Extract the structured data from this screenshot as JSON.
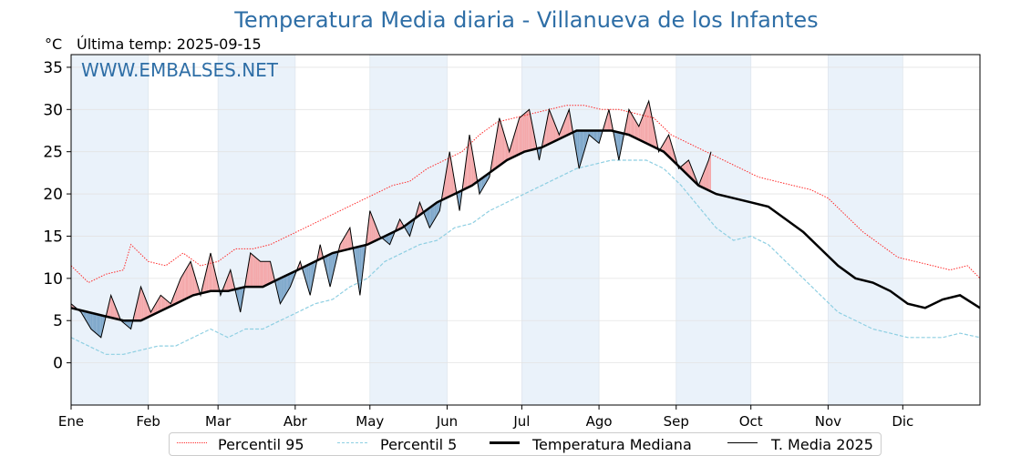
{
  "title": "Temperatura Media diaria - Villanueva de los Infantes",
  "unit": "°C",
  "last_temp_label": "Última temp: 2025-09-15",
  "watermark": "WWW.EMBALSES.NET",
  "colors": {
    "p95": "#ff2a2a",
    "p5": "#8ecfe2",
    "median": "#000000",
    "media2025": "#000000",
    "above_fill": "#f4a8aa",
    "below_fill": "#7fa8cb",
    "band": "#eaf2fa",
    "title": "#2e6ea6"
  },
  "legend": {
    "p95": "Percentil 95",
    "p5": "Percentil 5",
    "median": "Temperatura Mediana",
    "media2025": "T. Media 2025"
  },
  "chart_data": {
    "type": "line",
    "title": "Temperatura Media diaria - Villanueva de los Infantes",
    "ylabel": "°C",
    "ylim": [
      -5,
      36.5
    ],
    "yticks": [
      0,
      5,
      10,
      15,
      20,
      25,
      30,
      35
    ],
    "xlim": [
      1,
      366
    ],
    "month_labels": [
      "Ene",
      "Feb",
      "Mar",
      "Abr",
      "May",
      "Jun",
      "Jul",
      "Ago",
      "Sep",
      "Oct",
      "Nov",
      "Dic"
    ],
    "month_start_days": [
      1,
      32,
      60,
      91,
      121,
      152,
      182,
      213,
      244,
      274,
      305,
      335
    ],
    "grid": true,
    "legend_position": "bottom",
    "series": [
      {
        "name": "Percentil 95",
        "style": "dotted",
        "x": [
          1,
          8,
          15,
          22,
          25,
          32,
          39,
          46,
          53,
          60,
          67,
          74,
          81,
          88,
          95,
          102,
          109,
          116,
          123,
          130,
          137,
          144,
          151,
          158,
          165,
          172,
          179,
          186,
          193,
          200,
          207,
          214,
          221,
          228,
          235,
          242,
          249,
          256,
          263,
          270,
          277,
          284,
          291,
          298,
          305,
          312,
          319,
          326,
          333,
          340,
          347,
          354,
          361,
          366
        ],
        "values": [
          11.5,
          9.5,
          10.5,
          11,
          14,
          12,
          11.5,
          13,
          11.5,
          12,
          13.5,
          13.5,
          14,
          15,
          16,
          17,
          18,
          19,
          20,
          21,
          21.5,
          23,
          24,
          25,
          27,
          28.5,
          29,
          29.5,
          30,
          30.5,
          30.5,
          30,
          30,
          29.5,
          29,
          27,
          26,
          25,
          24,
          23,
          22,
          21.5,
          21,
          20.5,
          19.5,
          17.5,
          15.5,
          14,
          12.5,
          12,
          11.5,
          11,
          11.5,
          10
        ]
      },
      {
        "name": "Percentil 5",
        "style": "dashed",
        "x": [
          1,
          8,
          15,
          22,
          29,
          36,
          43,
          50,
          57,
          64,
          71,
          78,
          85,
          92,
          99,
          106,
          113,
          120,
          127,
          134,
          141,
          148,
          155,
          162,
          169,
          176,
          183,
          190,
          197,
          204,
          211,
          218,
          225,
          232,
          239,
          246,
          253,
          260,
          267,
          274,
          281,
          288,
          295,
          302,
          309,
          316,
          323,
          330,
          337,
          344,
          351,
          358,
          366
        ],
        "values": [
          3,
          2,
          1,
          1,
          1.5,
          2,
          2,
          3,
          4,
          3,
          4,
          4,
          5,
          6,
          7,
          7.5,
          9,
          10,
          12,
          13,
          14,
          14.5,
          16,
          16.5,
          18,
          19,
          20,
          21,
          22,
          23,
          23.5,
          24,
          24,
          24,
          23,
          21,
          18.5,
          16,
          14.5,
          15,
          14,
          12,
          10,
          8,
          6,
          5,
          4,
          3.5,
          3,
          3,
          3,
          3.5,
          3
        ]
      },
      {
        "name": "Temperatura Mediana",
        "style": "solid-bold",
        "x": [
          1,
          8,
          15,
          22,
          29,
          36,
          43,
          50,
          57,
          64,
          71,
          78,
          85,
          92,
          99,
          106,
          113,
          120,
          127,
          134,
          141,
          148,
          155,
          162,
          169,
          176,
          183,
          190,
          197,
          204,
          211,
          218,
          225,
          232,
          239,
          246,
          253,
          260,
          267,
          274,
          281,
          288,
          295,
          302,
          309,
          316,
          323,
          330,
          337,
          344,
          351,
          358,
          366
        ],
        "values": [
          6.5,
          6,
          5.5,
          5,
          5,
          6,
          7,
          8,
          8.5,
          8.5,
          9,
          9,
          10,
          11,
          12,
          13,
          13.5,
          14,
          15,
          16,
          17.5,
          19,
          20,
          21,
          22.5,
          24,
          25,
          25.5,
          26.5,
          27.5,
          27.5,
          27.5,
          27,
          26,
          25,
          23,
          21,
          20,
          19.5,
          19,
          18.5,
          17,
          15.5,
          13.5,
          11.5,
          10,
          9.5,
          8.5,
          7,
          6.5,
          7.5,
          8,
          6.5
        ]
      },
      {
        "name": "T. Media 2025",
        "style": "solid-thin",
        "x": [
          1,
          5,
          9,
          13,
          17,
          21,
          25,
          29,
          33,
          37,
          41,
          45,
          49,
          53,
          57,
          61,
          65,
          69,
          73,
          77,
          81,
          85,
          89,
          93,
          97,
          101,
          105,
          109,
          113,
          117,
          121,
          125,
          129,
          133,
          137,
          141,
          145,
          149,
          153,
          157,
          161,
          165,
          169,
          173,
          177,
          181,
          185,
          189,
          193,
          197,
          201,
          205,
          209,
          213,
          217,
          221,
          225,
          229,
          233,
          237,
          241,
          245,
          249,
          253,
          257,
          258
        ],
        "values": [
          7,
          6,
          4,
          3,
          8,
          5,
          4,
          9,
          6,
          8,
          7,
          10,
          12,
          8,
          13,
          8,
          11,
          6,
          13,
          12,
          12,
          7,
          9,
          12,
          8,
          14,
          9,
          14,
          16,
          8,
          18,
          15,
          14,
          17,
          15,
          19,
          16,
          18,
          25,
          18,
          27,
          20,
          22,
          29,
          25,
          29,
          30,
          24,
          30,
          27,
          30,
          23,
          27,
          26,
          30,
          24,
          30,
          28,
          31,
          25,
          27,
          23,
          24,
          21,
          24,
          25
        ]
      }
    ]
  }
}
